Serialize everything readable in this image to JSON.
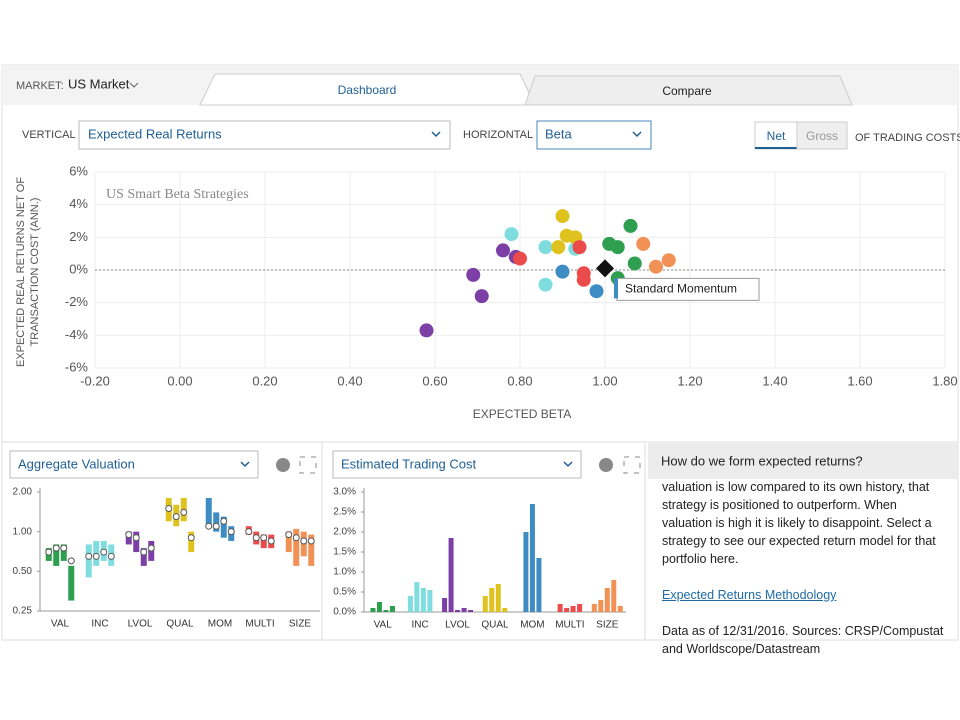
{
  "header": {
    "market_label": "MARKET:",
    "market": "US Market",
    "tabs": [
      "Dashboard",
      "Compare"
    ]
  },
  "controls": {
    "vertical_label": "VERTICAL",
    "vertical": "Expected Real Returns",
    "horizontal_label": "HORIZONTAL",
    "horizontal": "Beta",
    "net": "Net",
    "gross": "Gross",
    "costs_label": "OF TRADING COSTS"
  },
  "chart_data": [
    {
      "type": "scatter",
      "title": "US Smart Beta Strategies",
      "xlabel": "EXPECTED BETA",
      "ylabel": "EXPECTED REAL RETURNS NET OF TRANSACTION COST (ANN.)",
      "xlim": [
        -0.2,
        1.8
      ],
      "xticks": [
        {
          "value": -0.2,
          "label": "-0.20"
        },
        {
          "value": 0,
          "label": "0.00"
        },
        {
          "value": 0.2,
          "label": "0.20"
        },
        {
          "value": 0.4,
          "label": "0.40"
        },
        {
          "value": 0.6,
          "label": "0.60"
        },
        {
          "value": 0.8,
          "label": "0.80"
        },
        {
          "value": 1,
          "label": "1.00"
        },
        {
          "value": 1.2,
          "label": "1.20"
        },
        {
          "value": 1.4,
          "label": "1.40"
        },
        {
          "value": 1.6,
          "label": "1.60"
        },
        {
          "value": 1.8,
          "label": "1.80"
        }
      ],
      "ylim": [
        -6,
        6
      ],
      "yticks": [
        {
          "value": -6,
          "label": "-6%"
        },
        {
          "value": -4,
          "label": "-4%"
        },
        {
          "value": -2,
          "label": "-2%"
        },
        {
          "value": 0,
          "label": "0%"
        },
        {
          "value": 2,
          "label": "2%"
        },
        {
          "value": 4,
          "label": "4%"
        },
        {
          "value": 6,
          "label": "6%"
        }
      ],
      "grid": true,
      "hline": 0,
      "series": [
        {
          "color": "#7b3fa6",
          "x": [
            0.58,
            0.69,
            0.71,
            0.76,
            0.79
          ],
          "values": [
            -3.7,
            -0.3,
            -1.6,
            1.2,
            0.8
          ]
        },
        {
          "color": "#7fdde0",
          "x": [
            0.78,
            0.86,
            0.86,
            0.93
          ],
          "values": [
            2.2,
            1.4,
            -0.9,
            1.3
          ]
        },
        {
          "color": "#e0c21e",
          "x": [
            0.9,
            0.91,
            0.89,
            0.93
          ],
          "values": [
            3.3,
            2.1,
            1.4,
            2.0
          ]
        },
        {
          "color": "#ec4b4b",
          "x": [
            0.8,
            0.94,
            0.95,
            0.95
          ],
          "values": [
            0.7,
            1.4,
            -0.2,
            -0.6
          ]
        },
        {
          "color": "#3d8cc4",
          "x": [
            0.9,
            0.98
          ],
          "values": [
            -0.1,
            -1.3
          ]
        },
        {
          "color": "#2e9e4f",
          "x": [
            1.01,
            1.03,
            1.06,
            1.07,
            1.03
          ],
          "values": [
            1.6,
            1.4,
            2.7,
            0.4,
            -0.5
          ]
        },
        {
          "color": "#f29155",
          "x": [
            1.09,
            1.12,
            1.15
          ],
          "values": [
            1.6,
            0.2,
            0.6
          ]
        }
      ],
      "highlight": {
        "name": "Standard Momentum",
        "x": 1.0,
        "y": 0.1,
        "color": "#111111"
      }
    },
    {
      "type": "range",
      "title": "Aggregate Valuation",
      "log_scale": true,
      "ylim": [
        0.25,
        2
      ],
      "yticks": [
        {
          "value": 0.25,
          "label": "0.25"
        },
        {
          "value": 0.5,
          "label": "0.50"
        },
        {
          "value": 1,
          "label": "1.00"
        },
        {
          "value": 2,
          "label": "2.00"
        }
      ],
      "categories": [
        "VAL",
        "INC",
        "LVOL",
        "QUAL",
        "MOM",
        "MULTI",
        "SIZE"
      ],
      "groups": [
        {
          "color": "#2e9e4f",
          "low": [
            0.6,
            0.55,
            0.6,
            0.3
          ],
          "high": [
            0.75,
            0.8,
            0.8,
            0.55
          ],
          "point": [
            0.7,
            0.75,
            0.75,
            0.6
          ]
        },
        {
          "color": "#7fdde0",
          "low": [
            0.45,
            0.55,
            0.6,
            0.55
          ],
          "high": [
            0.8,
            0.85,
            0.85,
            0.8
          ],
          "point": [
            0.65,
            0.65,
            0.7,
            0.65
          ]
        },
        {
          "color": "#7b3fa6",
          "low": [
            0.8,
            0.7,
            0.55,
            0.6
          ],
          "high": [
            1.0,
            1.0,
            0.75,
            0.85
          ],
          "point": [
            0.95,
            0.9,
            0.7,
            0.75
          ]
        },
        {
          "color": "#e0c21e",
          "low": [
            1.2,
            1.1,
            1.2,
            0.7
          ],
          "high": [
            1.8,
            1.6,
            1.8,
            1.0
          ],
          "point": [
            1.5,
            1.3,
            1.4,
            0.9
          ]
        },
        {
          "color": "#3d8cc4",
          "low": [
            1.1,
            1.0,
            0.9,
            0.85
          ],
          "high": [
            1.8,
            1.4,
            1.3,
            1.1
          ],
          "point": [
            1.1,
            1.1,
            1.2,
            1.0
          ]
        },
        {
          "color": "#ec4b4b",
          "low": [
            0.95,
            0.8,
            0.75,
            0.75
          ],
          "high": [
            1.1,
            1.0,
            0.95,
            0.95
          ],
          "point": [
            1.0,
            0.9,
            0.9,
            0.85
          ]
        },
        {
          "color": "#f29155",
          "low": [
            0.7,
            0.55,
            0.65,
            0.55
          ],
          "high": [
            1.0,
            1.05,
            1.0,
            0.95
          ],
          "point": [
            0.95,
            0.9,
            0.85,
            0.85
          ]
        }
      ]
    },
    {
      "type": "bar",
      "title": "Estimated Trading Cost",
      "ylim": [
        0,
        3
      ],
      "yticks": [
        {
          "value": 0,
          "label": "0.0%"
        },
        {
          "value": 0.5,
          "label": "0.5%"
        },
        {
          "value": 1,
          "label": "1.0%"
        },
        {
          "value": 1.5,
          "label": "1.5%"
        },
        {
          "value": 2,
          "label": "2.0%"
        },
        {
          "value": 2.5,
          "label": "2.5%"
        },
        {
          "value": 3,
          "label": "3.0%"
        }
      ],
      "categories": [
        "VAL",
        "INC",
        "LVOL",
        "QUAL",
        "MOM",
        "MULTI",
        "SIZE"
      ],
      "groups": [
        {
          "color": "#2e9e4f",
          "values": [
            0.1,
            0.25,
            0.05,
            0.15
          ]
        },
        {
          "color": "#7fdde0",
          "values": [
            0.4,
            0.75,
            0.6,
            0.55
          ]
        },
        {
          "color": "#7b3fa6",
          "values": [
            0.35,
            1.85,
            0.05,
            0.1,
            0.05
          ]
        },
        {
          "color": "#e0c21e",
          "values": [
            0.4,
            0.6,
            0.7,
            0.1
          ]
        },
        {
          "color": "#3d8cc4",
          "values": [
            2.0,
            2.7,
            1.35
          ]
        },
        {
          "color": "#ec4b4b",
          "values": [
            0.2,
            0.1,
            0.15,
            0.2
          ]
        },
        {
          "color": "#f29155",
          "values": [
            0.2,
            0.3,
            0.6,
            0.8,
            0.15
          ]
        }
      ]
    }
  ],
  "info": {
    "title": "How do we form expected returns?",
    "text": "valuation is low compared to its own history, that strategy is positioned to outperform. When valuation is high it is likely to disappoint. Select a strategy to see our expected return model for that portfolio here.",
    "link": "Expected Returns Methodology",
    "source": "Data as of 12/31/2016. Sources: CRSP/Compustat and Worldscope/Datastream"
  }
}
